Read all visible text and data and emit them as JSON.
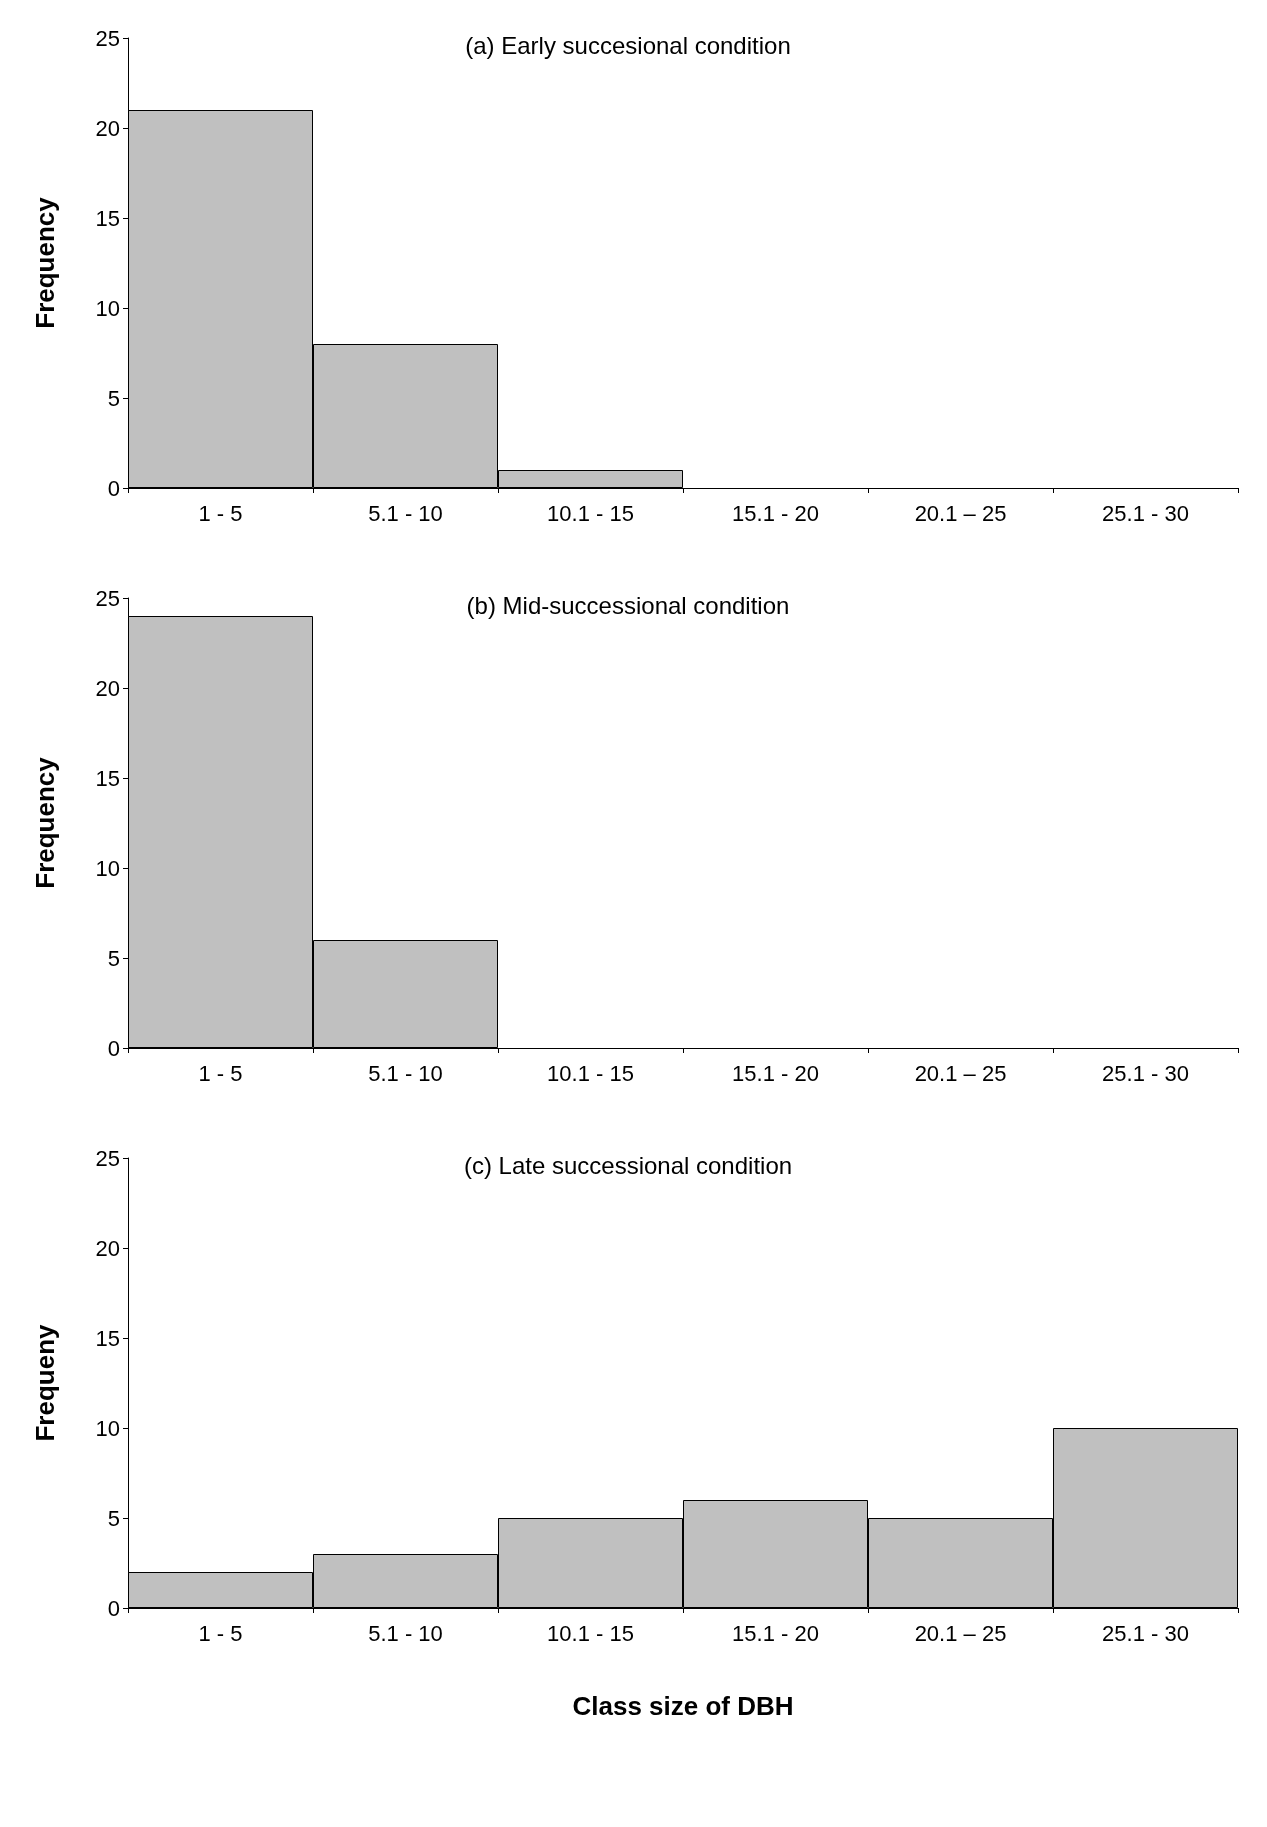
{
  "chart_data": [
    {
      "type": "bar",
      "title": "(a) Early succesional condition",
      "ylabel": "Frequency",
      "categories": [
        "1 - 5",
        "5.1 - 10",
        "10.1 - 15",
        "15.1 - 20",
        "20.1 – 25",
        "25.1 - 30"
      ],
      "values": [
        21,
        8,
        1,
        0,
        0,
        0
      ],
      "color": "#c0c0c0",
      "ylim": [
        0,
        25
      ],
      "yticks": [
        0,
        5,
        10,
        15,
        20,
        25
      ]
    },
    {
      "type": "bar",
      "title": "(b) Mid-successional condition",
      "ylabel": "Frequency",
      "categories": [
        "1 - 5",
        "5.1 - 10",
        "10.1 - 15",
        "15.1 - 20",
        "20.1 – 25",
        "25.1 - 30"
      ],
      "values": [
        24,
        6,
        0,
        0,
        0,
        0
      ],
      "color": "#c0c0c0",
      "ylim": [
        0,
        25
      ],
      "yticks": [
        0,
        5,
        10,
        15,
        20,
        25
      ]
    },
    {
      "type": "bar",
      "title": "(c) Late successional condition",
      "ylabel": "Frequeny",
      "xlabel": "Class size of DBH",
      "categories": [
        "1 - 5",
        "5.1 - 10",
        "10.1 - 15",
        "15.1 - 20",
        "20.1 – 25",
        "25.1 - 30"
      ],
      "values": [
        2,
        3,
        5,
        6,
        5,
        10
      ],
      "color": "#c0c0c0",
      "ylim": [
        0,
        25
      ],
      "yticks": [
        0,
        5,
        10,
        15,
        20,
        25
      ]
    }
  ]
}
